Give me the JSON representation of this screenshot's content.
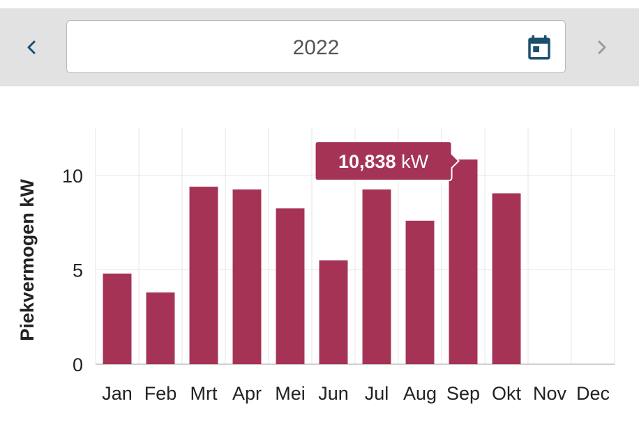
{
  "header": {
    "period": "2022",
    "prev_icon": "chevron-left-icon",
    "next_icon": "chevron-right-icon",
    "calendar_icon": "calendar-icon"
  },
  "colors": {
    "bar": "#a53355",
    "tooltip_bg": "#a53355",
    "grid": "#e6e6e6",
    "axis": "#cfcfcf",
    "prev_arrow": "#1d4e6e",
    "next_arrow": "#9a9a9a",
    "calendar": "#1d4e6e"
  },
  "chart_data": {
    "type": "bar",
    "title": "",
    "xlabel": "",
    "ylabel": "Piekvermogen kW",
    "categories": [
      "Jan",
      "Feb",
      "Mrt",
      "Apr",
      "Mei",
      "Jun",
      "Jul",
      "Aug",
      "Sep",
      "Okt",
      "Nov",
      "Dec"
    ],
    "values": [
      4.8,
      3.8,
      9.4,
      9.25,
      8.25,
      5.5,
      9.25,
      7.6,
      10.838,
      9.05,
      null,
      null
    ],
    "ylim": [
      0,
      12.5
    ],
    "yticks": [
      0,
      5,
      10
    ],
    "grid": true,
    "legend": "none",
    "tooltip": {
      "category": "Sep",
      "value_text": "10,838",
      "unit": "kW"
    }
  }
}
